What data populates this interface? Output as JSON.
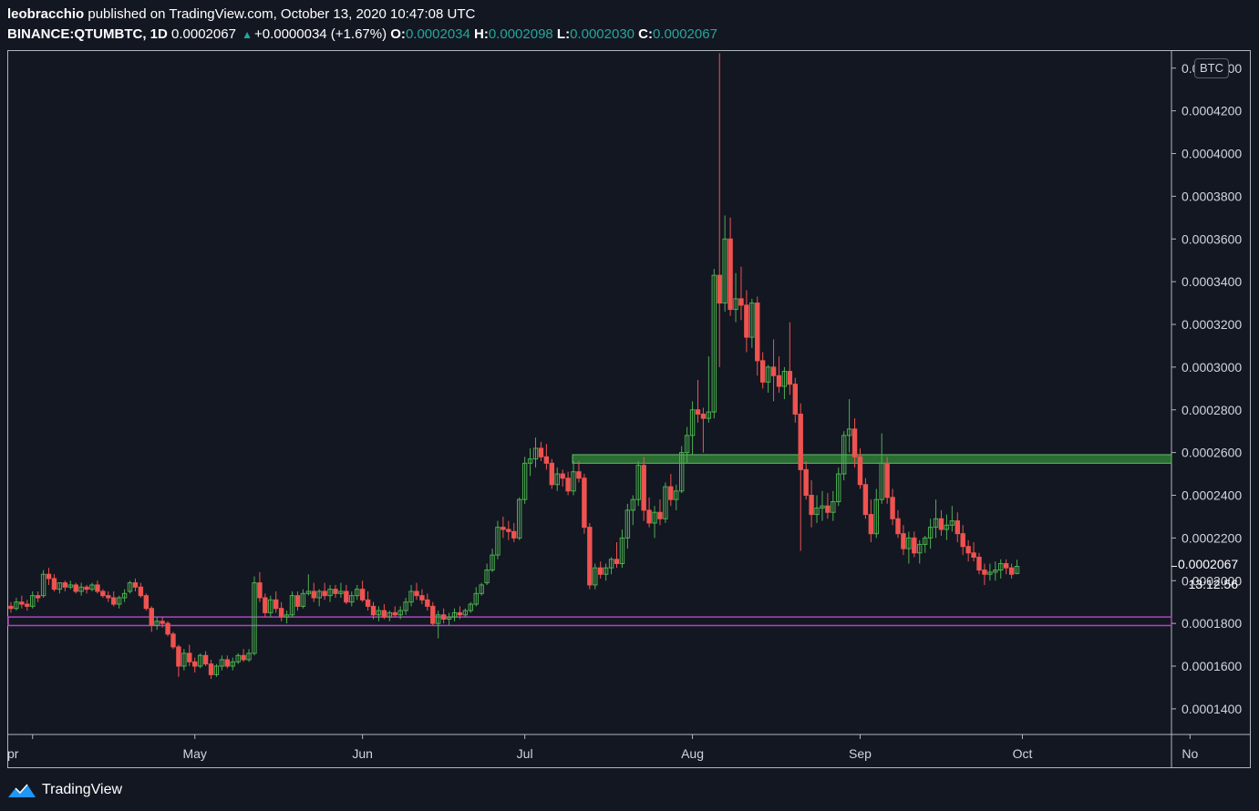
{
  "header": {
    "author": "leobracchio",
    "published_text": "published on TradingView.com, October 13, 2020 10:47:08 UTC",
    "symbol": "BINANCE:QTUMBTC, 1D",
    "last": "0.0002067",
    "change": "+0.0000034 (+1.67%)",
    "o_label": "O:",
    "o_value": "0.0002034",
    "h_label": "H:",
    "h_value": "0.0002098",
    "l_label": "L:",
    "l_value": "0.0002030",
    "c_label": "C:",
    "c_value": "0.0002067"
  },
  "currency_badge": "BTC",
  "last_price_label": "0.0002067",
  "countdown": "13:12:56",
  "footer": {
    "brand": "TradingView"
  },
  "colors": {
    "background": "#131722",
    "up": "#26a69a",
    "candle_up": "#4caf50",
    "candle_down": "#ef5350",
    "resistance_zone": "#2e7d32",
    "support_line": "#ab47bc"
  },
  "chart_data": {
    "type": "candlestick",
    "title": "BINANCE:QTUMBTC, 1D",
    "y_unit": "BTC",
    "ylim": [
      0.000128,
      0.000448
    ],
    "y_ticks": [
      "0.0001400",
      "0.0001600",
      "0.0001800",
      "0.0002000",
      "0.0002200",
      "0.0002400",
      "0.0002600",
      "0.0002800",
      "0.0003000",
      "0.0003200",
      "0.0003400",
      "0.0003600",
      "0.0003800",
      "0.0004000",
      "0.0004200",
      "0.0004400"
    ],
    "x_labels": [
      "Apr",
      "May",
      "Jun",
      "Jul",
      "Aug",
      "Sep",
      "Oct",
      "Nov"
    ],
    "visible_x_labels": [
      "pr",
      "May",
      "Jun",
      "Jul",
      "Aug",
      "Sep",
      "Oct",
      "No"
    ],
    "resistance_zone": [
      0.000255,
      0.000259
    ],
    "support_zone": [
      0.000179,
      0.000183
    ],
    "candles_start": "2020-03-28",
    "candles": [
      [
        0.000188,
        0.00019,
        0.000185,
        0.000187
      ],
      [
        0.000187,
        0.000192,
        0.000186,
        0.00019
      ],
      [
        0.00019,
        0.000193,
        0.000187,
        0.000189
      ],
      [
        0.000189,
        0.000191,
        0.000186,
        0.000188
      ],
      [
        0.000188,
        0.000195,
        0.000187,
        0.000193
      ],
      [
        0.000193,
        0.000195,
        0.00019,
        0.000192
      ],
      [
        0.000193,
        0.000205,
        0.000192,
        0.000203
      ],
      [
        0.000203,
        0.000206,
        0.000198,
        0.000201
      ],
      [
        0.000201,
        0.000203,
        0.000195,
        0.000196
      ],
      [
        0.000196,
        0.000199,
        0.000194,
        0.000199
      ],
      [
        0.000199,
        0.0002,
        0.000195,
        0.000197
      ],
      [
        0.000197,
        0.0002,
        0.000196,
        0.000198
      ],
      [
        0.000198,
        0.000199,
        0.000194,
        0.000195
      ],
      [
        0.000195,
        0.000199,
        0.000193,
        0.000197
      ],
      [
        0.000197,
        0.000198,
        0.000194,
        0.000196
      ],
      [
        0.000196,
        0.000199,
        0.000195,
        0.000198
      ],
      [
        0.000198,
        0.0002,
        0.000194,
        0.000195
      ],
      [
        0.000195,
        0.000196,
        0.000192,
        0.000193
      ],
      [
        0.000193,
        0.000195,
        0.00019,
        0.000192
      ],
      [
        0.000192,
        0.000195,
        0.000188,
        0.000189
      ],
      [
        0.000189,
        0.000193,
        0.000187,
        0.000192
      ],
      [
        0.000192,
        0.000196,
        0.00019,
        0.000194
      ],
      [
        0.000195,
        0.0002,
        0.000194,
        0.000199
      ],
      [
        0.000199,
        0.000201,
        0.000195,
        0.000197
      ],
      [
        0.000197,
        0.000199,
        0.000192,
        0.000193
      ],
      [
        0.000193,
        0.000194,
        0.000186,
        0.000187
      ],
      [
        0.000187,
        0.000188,
        0.000176,
        0.000179
      ],
      [
        0.000179,
        0.000183,
        0.000177,
        0.000181
      ],
      [
        0.000181,
        0.000183,
        0.000178,
        0.00018
      ],
      [
        0.00018,
        0.000181,
        0.000174,
        0.000175
      ],
      [
        0.000175,
        0.000176,
        0.000168,
        0.000169
      ],
      [
        0.000169,
        0.00017,
        0.000155,
        0.00016
      ],
      [
        0.00016,
        0.000168,
        0.000158,
        0.000166
      ],
      [
        0.000166,
        0.00017,
        0.00016,
        0.000162
      ],
      [
        0.000162,
        0.000164,
        0.000157,
        0.00016
      ],
      [
        0.00016,
        0.000166,
        0.000159,
        0.000165
      ],
      [
        0.000165,
        0.000167,
        0.00016,
        0.000161
      ],
      [
        0.000161,
        0.000163,
        0.000154,
        0.000156
      ],
      [
        0.000156,
        0.000161,
        0.000155,
        0.00016
      ],
      [
        0.00016,
        0.000165,
        0.000158,
        0.000163
      ],
      [
        0.000163,
        0.000165,
        0.000159,
        0.00016
      ],
      [
        0.00016,
        0.000164,
        0.000158,
        0.000162
      ],
      [
        0.000162,
        0.000166,
        0.000161,
        0.000165
      ],
      [
        0.000165,
        0.000168,
        0.000162,
        0.000163
      ],
      [
        0.000163,
        0.000168,
        0.000162,
        0.000166
      ],
      [
        0.000166,
        0.000202,
        0.000165,
        0.000199
      ],
      [
        0.000199,
        0.000204,
        0.00019,
        0.000192
      ],
      [
        0.000192,
        0.000194,
        0.000183,
        0.000185
      ],
      [
        0.000185,
        0.000193,
        0.000183,
        0.000191
      ],
      [
        0.000191,
        0.000195,
        0.000185,
        0.000187
      ],
      [
        0.000187,
        0.00019,
        0.000181,
        0.000183
      ],
      [
        0.000183,
        0.000186,
        0.00018,
        0.000184
      ],
      [
        0.000184,
        0.000195,
        0.000183,
        0.000193
      ],
      [
        0.000193,
        0.000195,
        0.000186,
        0.000188
      ],
      [
        0.000188,
        0.000196,
        0.000187,
        0.000194
      ],
      [
        0.000194,
        0.000203,
        0.000193,
        0.000195
      ],
      [
        0.000195,
        0.000199,
        0.00019,
        0.000192
      ],
      [
        0.000192,
        0.000196,
        0.000188,
        0.000195
      ],
      [
        0.000195,
        0.000199,
        0.000191,
        0.000193
      ],
      [
        0.000193,
        0.000198,
        0.00019,
        0.000196
      ],
      [
        0.000196,
        0.000198,
        0.000192,
        0.000194
      ],
      [
        0.000194,
        0.000199,
        0.000192,
        0.000195
      ],
      [
        0.000195,
        0.000198,
        0.000189,
        0.00019
      ],
      [
        0.00019,
        0.000195,
        0.000188,
        0.000193
      ],
      [
        0.000193,
        0.000198,
        0.000191,
        0.000196
      ],
      [
        0.000196,
        0.0002,
        0.00019,
        0.000191
      ],
      [
        0.000191,
        0.000195,
        0.000186,
        0.000188
      ],
      [
        0.000188,
        0.00019,
        0.000182,
        0.000184
      ],
      [
        0.000184,
        0.000188,
        0.000181,
        0.000186
      ],
      [
        0.000186,
        0.000189,
        0.000182,
        0.000183
      ],
      [
        0.000183,
        0.000186,
        0.000181,
        0.000185
      ],
      [
        0.000185,
        0.000188,
        0.000183,
        0.000184
      ],
      [
        0.000184,
        0.000188,
        0.000182,
        0.000186
      ],
      [
        0.000186,
        0.000192,
        0.000184,
        0.00019
      ],
      [
        0.00019,
        0.000198,
        0.000188,
        0.000195
      ],
      [
        0.000195,
        0.000199,
        0.000191,
        0.000193
      ],
      [
        0.000193,
        0.000196,
        0.000189,
        0.000191
      ],
      [
        0.000191,
        0.000194,
        0.000186,
        0.000188
      ],
      [
        0.000188,
        0.00019,
        0.000179,
        0.00018
      ],
      [
        0.00018,
        0.000186,
        0.000173,
        0.000184
      ],
      [
        0.000184,
        0.000187,
        0.00018,
        0.000182
      ],
      [
        0.000182,
        0.000185,
        0.000179,
        0.000183
      ],
      [
        0.000183,
        0.000187,
        0.000181,
        0.000185
      ],
      [
        0.000185,
        0.000188,
        0.000182,
        0.000184
      ],
      [
        0.000184,
        0.000187,
        0.000183,
        0.000186
      ],
      [
        0.000186,
        0.00019,
        0.000185,
        0.000189
      ],
      [
        0.000189,
        0.000197,
        0.000188,
        0.000194
      ],
      [
        0.000194,
        0.000199,
        0.000193,
        0.000198
      ],
      [
        0.000199,
        0.000208,
        0.000198,
        0.000205
      ],
      [
        0.000205,
        0.000215,
        0.000204,
        0.000212
      ],
      [
        0.000212,
        0.000228,
        0.00021,
        0.000225
      ],
      [
        0.000225,
        0.00023,
        0.00022,
        0.000224
      ],
      [
        0.000224,
        0.000228,
        0.000219,
        0.000223
      ],
      [
        0.000223,
        0.000227,
        0.000218,
        0.00022
      ],
      [
        0.00022,
        0.000239,
        0.000219,
        0.000238
      ],
      [
        0.000238,
        0.000258,
        0.000236,
        0.000255
      ],
      [
        0.000255,
        0.000262,
        0.000249,
        0.000257
      ],
      [
        0.000257,
        0.000267,
        0.000253,
        0.000262
      ],
      [
        0.000262,
        0.000265,
        0.000256,
        0.000258
      ],
      [
        0.000258,
        0.000264,
        0.000252,
        0.000255
      ],
      [
        0.000255,
        0.000257,
        0.000243,
        0.000245
      ],
      [
        0.000245,
        0.000253,
        0.000242,
        0.00025
      ],
      [
        0.00025,
        0.000252,
        0.000244,
        0.000248
      ],
      [
        0.000248,
        0.000251,
        0.00024,
        0.000242
      ],
      [
        0.000242,
        0.000256,
        0.00024,
        0.000251
      ],
      [
        0.000251,
        0.000256,
        0.000246,
        0.000248
      ],
      [
        0.000248,
        0.00025,
        0.000222,
        0.000225
      ],
      [
        0.000225,
        0.000227,
        0.000196,
        0.000198
      ],
      [
        0.000198,
        0.000208,
        0.000196,
        0.000206
      ],
      [
        0.000206,
        0.000209,
        0.000201,
        0.000203
      ],
      [
        0.000203,
        0.000208,
        0.0002,
        0.000206
      ],
      [
        0.000206,
        0.000211,
        0.000203,
        0.00021
      ],
      [
        0.00021,
        0.000218,
        0.000206,
        0.000208
      ],
      [
        0.000208,
        0.000224,
        0.000206,
        0.00022
      ],
      [
        0.00022,
        0.000236,
        0.000215,
        0.000233
      ],
      [
        0.000233,
        0.00024,
        0.000226,
        0.000238
      ],
      [
        0.000238,
        0.000256,
        0.000235,
        0.000254
      ],
      [
        0.000254,
        0.000258,
        0.000228,
        0.000233
      ],
      [
        0.000233,
        0.000239,
        0.000225,
        0.000227
      ],
      [
        0.000227,
        0.000235,
        0.00022,
        0.000232
      ],
      [
        0.000232,
        0.000238,
        0.000226,
        0.000229
      ],
      [
        0.000229,
        0.000246,
        0.000227,
        0.000244
      ],
      [
        0.000244,
        0.00025,
        0.000235,
        0.000238
      ],
      [
        0.000238,
        0.000245,
        0.000233,
        0.000242
      ],
      [
        0.000242,
        0.000263,
        0.000241,
        0.00026
      ],
      [
        0.00026,
        0.000272,
        0.000255,
        0.000268
      ],
      [
        0.000268,
        0.000284,
        0.000259,
        0.00028
      ],
      [
        0.00028,
        0.000294,
        0.000274,
        0.000278
      ],
      [
        0.000278,
        0.000281,
        0.00026,
        0.000276
      ],
      [
        0.000276,
        0.000305,
        0.000274,
        0.000279
      ],
      [
        0.000279,
        0.000346,
        0.000276,
        0.000343
      ],
      [
        0.000343,
        0.000447,
        0.0003,
        0.00033
      ],
      [
        0.00033,
        0.000371,
        0.000326,
        0.00036
      ],
      [
        0.00036,
        0.00037,
        0.000324,
        0.000327
      ],
      [
        0.000327,
        0.000344,
        0.000321,
        0.000332
      ],
      [
        0.000332,
        0.000347,
        0.000322,
        0.000329
      ],
      [
        0.000329,
        0.000336,
        0.000307,
        0.000314
      ],
      [
        0.000314,
        0.000332,
        0.000309,
        0.00033
      ],
      [
        0.00033,
        0.000333,
        0.000296,
        0.000303
      ],
      [
        0.000303,
        0.000307,
        0.00029,
        0.000293
      ],
      [
        0.000293,
        0.000301,
        0.000288,
        0.0003
      ],
      [
        0.0003,
        0.000313,
        0.000284,
        0.000296
      ],
      [
        0.000296,
        0.000305,
        0.000288,
        0.000291
      ],
      [
        0.000291,
        0.0003,
        0.000285,
        0.000298
      ],
      [
        0.000298,
        0.000321,
        0.000287,
        0.000292
      ],
      [
        0.000292,
        0.000295,
        0.000274,
        0.000278
      ],
      [
        0.000278,
        0.000283,
        0.000214,
        0.000252
      ],
      [
        0.000252,
        0.000256,
        0.000238,
        0.00024
      ],
      [
        0.00024,
        0.000247,
        0.000225,
        0.000231
      ],
      [
        0.000231,
        0.00024,
        0.000227,
        0.000234
      ],
      [
        0.000234,
        0.000242,
        0.000228,
        0.000235
      ],
      [
        0.000235,
        0.000241,
        0.000229,
        0.000232
      ],
      [
        0.000232,
        0.000242,
        0.000228,
        0.000237
      ],
      [
        0.000237,
        0.000253,
        0.000235,
        0.00025
      ],
      [
        0.00025,
        0.00027,
        0.000247,
        0.000268
      ],
      [
        0.000268,
        0.000285,
        0.00026,
        0.000271
      ],
      [
        0.000271,
        0.000276,
        0.000253,
        0.000258
      ],
      [
        0.000258,
        0.000262,
        0.000243,
        0.000245
      ],
      [
        0.000245,
        0.000248,
        0.000229,
        0.000231
      ],
      [
        0.000231,
        0.000238,
        0.000218,
        0.000222
      ],
      [
        0.000222,
        0.000243,
        0.00022,
        0.000238
      ],
      [
        0.000238,
        0.000269,
        0.000236,
        0.000255
      ],
      [
        0.000255,
        0.000258,
        0.000236,
        0.000239
      ],
      [
        0.000239,
        0.000243,
        0.000226,
        0.000229
      ],
      [
        0.000229,
        0.000233,
        0.00022,
        0.000222
      ],
      [
        0.000222,
        0.000226,
        0.000212,
        0.000215
      ],
      [
        0.000215,
        0.000223,
        0.000208,
        0.00022
      ],
      [
        0.00022,
        0.000223,
        0.000211,
        0.000213
      ],
      [
        0.000213,
        0.000219,
        0.000208,
        0.000217
      ],
      [
        0.000217,
        0.000221,
        0.000213,
        0.00022
      ],
      [
        0.00022,
        0.000229,
        0.000215,
        0.000225
      ],
      [
        0.000225,
        0.000238,
        0.00022,
        0.000229
      ],
      [
        0.000229,
        0.000233,
        0.000221,
        0.000224
      ],
      [
        0.000224,
        0.000231,
        0.000219,
        0.000226
      ],
      [
        0.000226,
        0.000235,
        0.000223,
        0.000228
      ],
      [
        0.000228,
        0.000232,
        0.000218,
        0.000222
      ],
      [
        0.000222,
        0.000226,
        0.000212,
        0.000216
      ],
      [
        0.000216,
        0.000219,
        0.000209,
        0.000213
      ],
      [
        0.000213,
        0.000218,
        0.000209,
        0.000211
      ],
      [
        0.000211,
        0.000213,
        0.000203,
        0.000205
      ],
      [
        0.000205,
        0.000208,
        0.000198,
        0.000203
      ],
      [
        0.000203,
        0.000208,
        0.0002,
        0.000204
      ],
      [
        0.000204,
        0.000209,
        0.0002,
        0.000205
      ],
      [
        0.000205,
        0.00021,
        0.000201,
        0.000208
      ],
      [
        0.000208,
        0.00021,
        0.000203,
        0.000206
      ],
      [
        0.000206,
        0.000208,
        0.000201,
        0.000203
      ],
      [
        0.0002034,
        0.0002098,
        0.000203,
        0.0002067
      ]
    ]
  }
}
